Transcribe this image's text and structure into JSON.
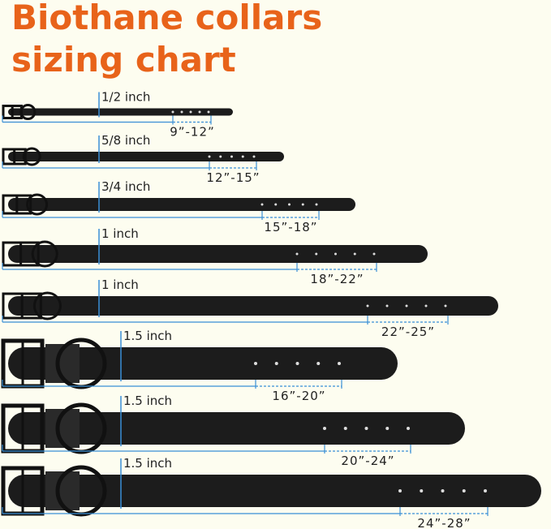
{
  "title_line1": "Biothane collars",
  "title_line2": "sizing chart",
  "collars": [
    {
      "width": "1/2 inch",
      "size": "9”-12”"
    },
    {
      "width": "5/8 inch",
      "size": "12”-15”"
    },
    {
      "width": "3/4 inch",
      "size": "15”-18”"
    },
    {
      "width": "1 inch",
      "size": "18”-22”"
    },
    {
      "width": "1 inch",
      "size": "22”-25”"
    },
    {
      "width": "1.5 inch",
      "size": "16”-20”"
    },
    {
      "width": "1.5 inch",
      "size": "20”-24”"
    },
    {
      "width": "1.5 inch",
      "size": "24”-28”"
    }
  ]
}
